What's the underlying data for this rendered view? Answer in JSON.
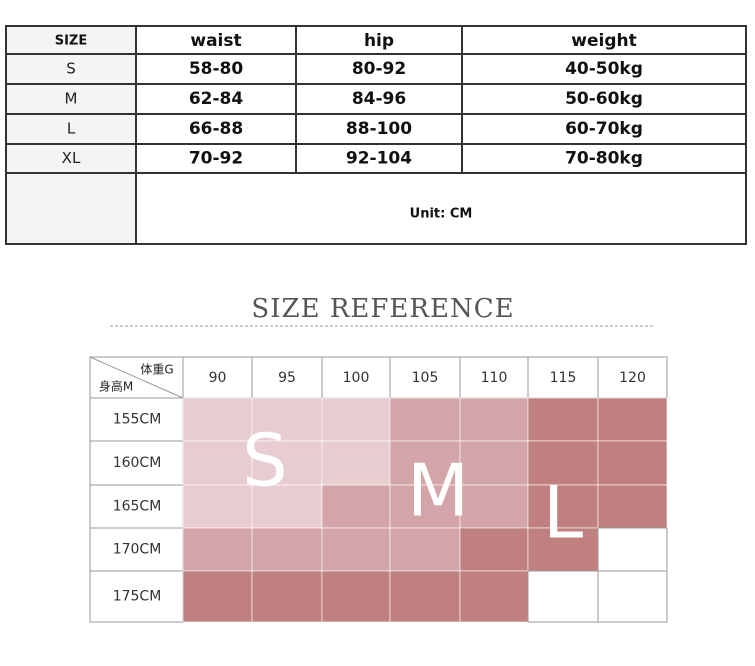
{
  "size_table": {
    "header": [
      "SIZE",
      "waist",
      "hip",
      "weight"
    ],
    "rows": [
      [
        "S",
        "58-80",
        "80-92",
        "40-50kg"
      ],
      [
        "M",
        "62-84",
        "84-96",
        "50-60kg"
      ],
      [
        "L",
        "66-88",
        "88-100",
        "60-70kg"
      ],
      [
        "XL",
        "70-92",
        "92-104",
        "70-80kg"
      ]
    ],
    "note": "Unit: CM"
  },
  "reference": {
    "title": "SIZE REFERENCE",
    "corner_top": "体重G",
    "corner_bottom": "身高M",
    "columns": [
      "90",
      "95",
      "100",
      "105",
      "110",
      "115",
      "120"
    ],
    "rows": [
      "155CM",
      "160CM",
      "165CM",
      "170CM",
      "175CM"
    ],
    "cell_colors": [
      [
        "#e8cdd0",
        "#e8cdd0",
        "#e8cdd0",
        "#d3a5a8",
        "#d3a5a8",
        "#c0807f",
        "#c0807f"
      ],
      [
        "#e8cdd0",
        "#e8cdd0",
        "#e8cdd0",
        "#d3a5a8",
        "#d3a5a8",
        "#c0807f",
        "#c0807f"
      ],
      [
        "#e8cdd0",
        "#e8cdd0",
        "#d3a5a8",
        "#d3a5a8",
        "#d3a5a8",
        "#c0807f",
        "#c0807f"
      ],
      [
        "#d3a5a8",
        "#d3a5a8",
        "#d3a5a8",
        "#d3a5a8",
        "#c0807f",
        "#c0807f",
        "#ffffff"
      ],
      [
        "#c0807f",
        "#c0807f",
        "#c0807f",
        "#c0807f",
        "#c0807f",
        "#ffffff",
        "#ffffff"
      ]
    ],
    "size_letters": [
      "S",
      "M",
      "L"
    ]
  }
}
